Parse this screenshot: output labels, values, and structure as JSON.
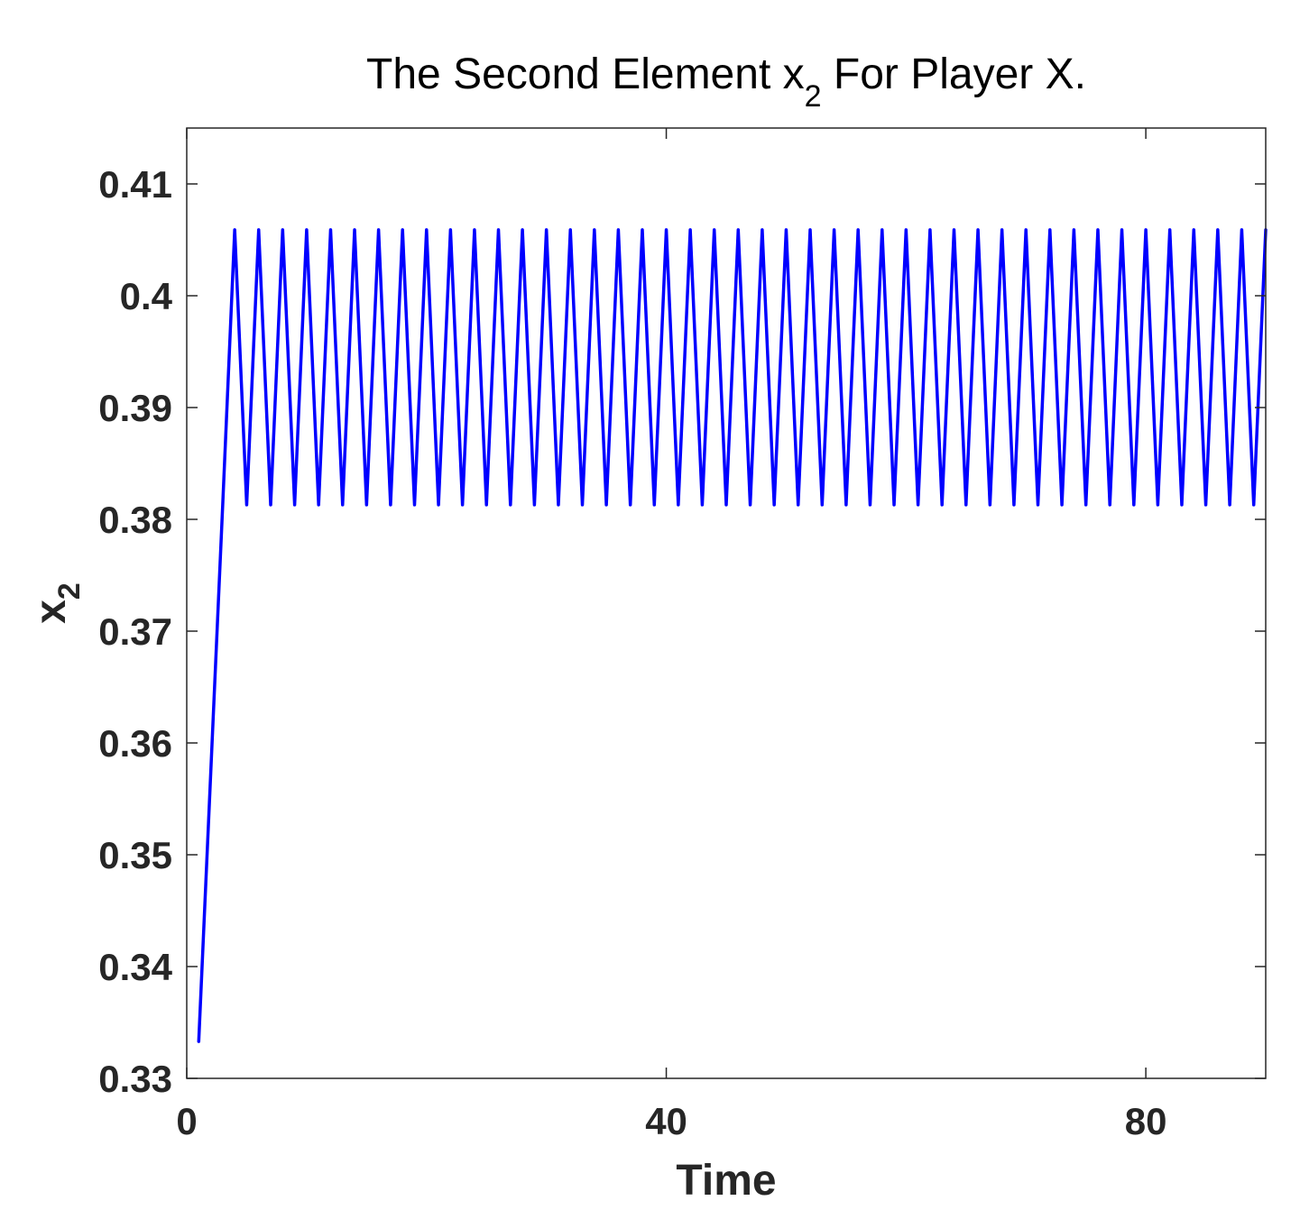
{
  "chart_data": {
    "type": "line",
    "title": {
      "main": "The Second Element x",
      "subscript": "2",
      "suffix": " For Player X."
    },
    "xlabel": "Time",
    "ylabel": {
      "main": "x",
      "subscript": "2"
    },
    "xlim": [
      0,
      90
    ],
    "ylim": [
      0.33,
      0.415
    ],
    "xticks": [
      0,
      40,
      80
    ],
    "xtick_labels": [
      "0",
      "40",
      "80"
    ],
    "yticks": [
      0.33,
      0.34,
      0.35,
      0.36,
      0.37,
      0.38,
      0.39,
      0.4,
      0.41
    ],
    "ytick_labels": [
      "0.33",
      "0.34",
      "0.35",
      "0.36",
      "0.37",
      "0.38",
      "0.39",
      "0.4",
      "0.41"
    ],
    "grid": false,
    "box": true,
    "series": [
      {
        "color": "#0000ff",
        "x": [
          1,
          3,
          4,
          5,
          6,
          7,
          8,
          9,
          10,
          11,
          12,
          13,
          14,
          15,
          16,
          17,
          18,
          19,
          20,
          21,
          22,
          23,
          24,
          25,
          26,
          27,
          28,
          29,
          30,
          31,
          32,
          33,
          34,
          35,
          36,
          37,
          38,
          39,
          40,
          41,
          42,
          43,
          44,
          45,
          46,
          47,
          48,
          49,
          50,
          51,
          52,
          53,
          54,
          55,
          56,
          57,
          58,
          59,
          60,
          61,
          62,
          63,
          64,
          65,
          66,
          67,
          68,
          69,
          70,
          71,
          72,
          73,
          74,
          75,
          76,
          77,
          78,
          79,
          80,
          81,
          82,
          83,
          84,
          85,
          86,
          87,
          88,
          89,
          90
        ],
        "y": [
          0.3333,
          0.3813,
          0.4059,
          0.3813,
          0.4059,
          0.3813,
          0.4059,
          0.3813,
          0.4059,
          0.3813,
          0.4059,
          0.3813,
          0.4059,
          0.3813,
          0.4059,
          0.3813,
          0.4059,
          0.3813,
          0.4059,
          0.3813,
          0.4059,
          0.3813,
          0.4059,
          0.3813,
          0.4059,
          0.3813,
          0.4059,
          0.3813,
          0.4059,
          0.3813,
          0.4059,
          0.3813,
          0.4059,
          0.3813,
          0.4059,
          0.3813,
          0.4059,
          0.3813,
          0.4059,
          0.3813,
          0.4059,
          0.3813,
          0.4059,
          0.3813,
          0.4059,
          0.3813,
          0.4059,
          0.3813,
          0.4059,
          0.3813,
          0.4059,
          0.3813,
          0.4059,
          0.3813,
          0.4059,
          0.3813,
          0.4059,
          0.3813,
          0.4059,
          0.3813,
          0.4059,
          0.3813,
          0.4059,
          0.3813,
          0.4059,
          0.3813,
          0.4059,
          0.3813,
          0.4059,
          0.3813,
          0.4059,
          0.3813,
          0.4059,
          0.3813,
          0.4059,
          0.3813,
          0.4059,
          0.3813,
          0.4059,
          0.3813,
          0.4059,
          0.3813,
          0.4059,
          0.3813,
          0.4059,
          0.3813,
          0.4059,
          0.3813,
          0.4059
        ]
      }
    ]
  }
}
